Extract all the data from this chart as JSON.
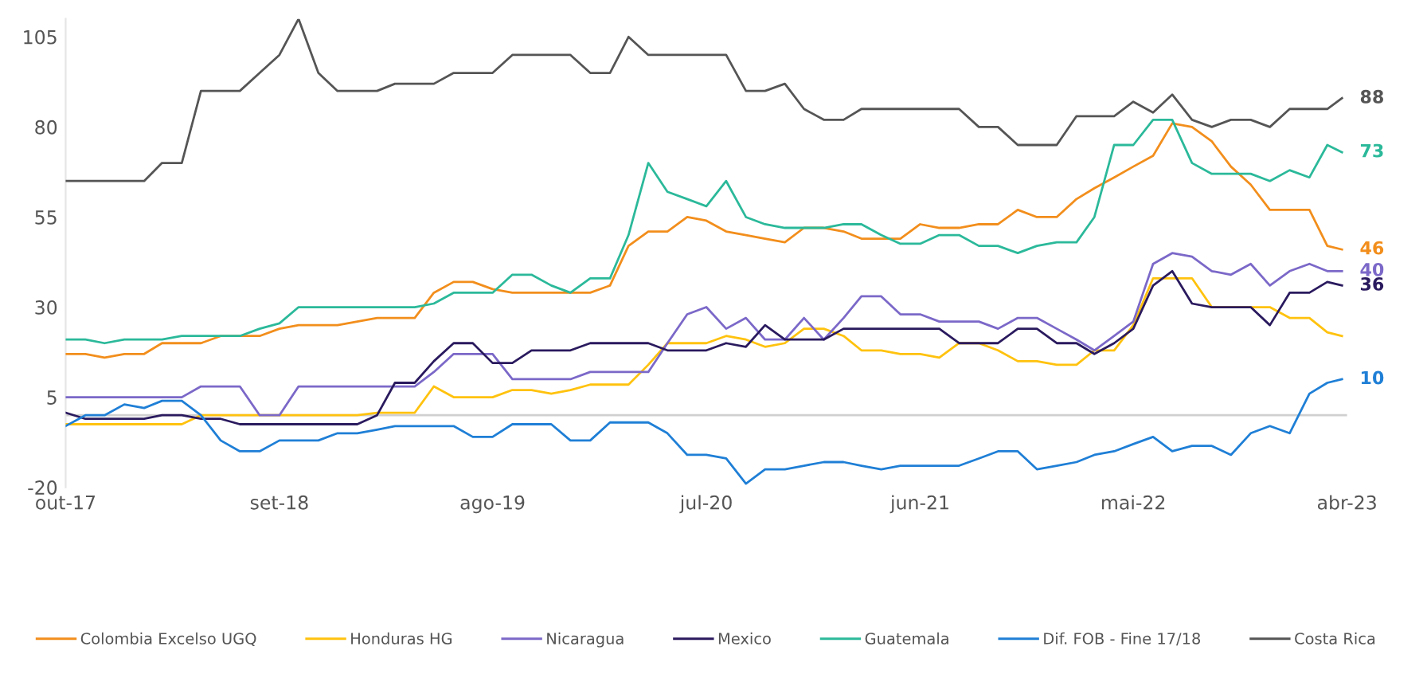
{
  "chart_data": {
    "type": "line",
    "x": [
      "2017-10",
      "2017-11",
      "2017-12",
      "2018-01",
      "2018-02",
      "2018-03",
      "2018-04",
      "2018-05",
      "2018-06",
      "2018-07",
      "2018-08",
      "2018-09",
      "2018-10",
      "2018-11",
      "2018-12",
      "2019-01",
      "2019-02",
      "2019-03",
      "2019-04",
      "2019-05",
      "2019-06",
      "2019-07",
      "2019-08",
      "2019-09",
      "2019-10",
      "2019-11",
      "2019-12",
      "2020-01",
      "2020-02",
      "2020-03",
      "2020-04",
      "2020-05",
      "2020-06",
      "2020-07",
      "2020-08",
      "2020-09",
      "2020-10",
      "2020-11",
      "2020-12",
      "2021-01",
      "2021-02",
      "2021-03",
      "2021-04",
      "2021-05",
      "2021-06",
      "2021-07",
      "2021-08",
      "2021-09",
      "2021-10",
      "2021-11",
      "2021-12",
      "2022-01",
      "2022-02",
      "2022-03",
      "2022-04",
      "2022-05",
      "2022-06",
      "2022-07",
      "2022-08",
      "2022-09",
      "2022-10",
      "2022-11",
      "2022-12",
      "2023-01",
      "2023-02",
      "2023-03",
      "2023-03-24"
    ],
    "series": [
      {
        "name": "Colombia Excelso UGQ",
        "color": "#f28e1c",
        "values": [
          17,
          17,
          16,
          17,
          17,
          20,
          20,
          20,
          22,
          22,
          22,
          24,
          25,
          25,
          25,
          26,
          27,
          27,
          27,
          34,
          37,
          37,
          35,
          34,
          34,
          34,
          34,
          34,
          36,
          47,
          51,
          51,
          55,
          54,
          51,
          50,
          49,
          48,
          52,
          52,
          51,
          49,
          49,
          49,
          53,
          52,
          52,
          53,
          53,
          57,
          55,
          55,
          60,
          63,
          66,
          69,
          72,
          81,
          80,
          76,
          69,
          64,
          57,
          57,
          57,
          47,
          46
        ],
        "value_labels": [
          null,
          null,
          null,
          null,
          null,
          null,
          null,
          null,
          null,
          null,
          null,
          null,
          null,
          null,
          null,
          null,
          null,
          null,
          null,
          null,
          null,
          null,
          null,
          null,
          null,
          null,
          null,
          null,
          null,
          null,
          null,
          null,
          null,
          null,
          null,
          null,
          null,
          null,
          null,
          null,
          null,
          null,
          null,
          null,
          null,
          null,
          null,
          null,
          null,
          null,
          null,
          null,
          null,
          null,
          null,
          null,
          null,
          null,
          null,
          null,
          null,
          null,
          null,
          null,
          null,
          null,
          "46"
        ]
      },
      {
        "name": "Honduras HG",
        "color": "#ffc20e",
        "values": [
          -2.5,
          -2.5,
          -2.5,
          -2.5,
          -2.5,
          -2.5,
          -2.5,
          0,
          0,
          0,
          0,
          0,
          0,
          0,
          0,
          0,
          0.7,
          0.7,
          0.7,
          8,
          5,
          5,
          5,
          7,
          7,
          6,
          7,
          8.5,
          8.5,
          8.5,
          14,
          20,
          20,
          20,
          22,
          21,
          19,
          20,
          24,
          24,
          22,
          18,
          18,
          17,
          17,
          16,
          20,
          20,
          18,
          15,
          15,
          14,
          14,
          18,
          18,
          25,
          38,
          38,
          38,
          30,
          30,
          30,
          30,
          27,
          27,
          23,
          22
        ]
      },
      {
        "name": "Nicaragua",
        "color": "#7b68c8",
        "values": [
          5,
          5,
          5,
          5,
          5,
          5,
          5,
          8,
          8,
          8,
          0,
          0,
          8,
          8,
          8,
          8,
          8,
          8,
          8,
          12,
          17,
          17,
          17,
          10,
          10,
          10,
          10,
          12,
          12,
          12,
          12,
          20,
          28,
          30,
          24,
          27,
          21,
          21,
          27,
          21,
          27,
          33,
          33,
          28,
          28,
          26,
          26,
          26,
          24,
          27,
          27,
          24,
          21,
          18,
          22,
          26,
          42,
          45,
          44,
          40,
          39,
          42,
          36,
          40,
          42,
          40,
          40
        ],
        "value_labels": [
          null,
          null,
          null,
          null,
          null,
          null,
          null,
          null,
          null,
          null,
          null,
          null,
          null,
          null,
          null,
          null,
          null,
          null,
          null,
          null,
          null,
          null,
          null,
          null,
          null,
          null,
          null,
          null,
          null,
          null,
          null,
          null,
          null,
          null,
          null,
          null,
          null,
          null,
          null,
          null,
          null,
          null,
          null,
          null,
          null,
          null,
          null,
          null,
          null,
          null,
          null,
          null,
          null,
          null,
          null,
          null,
          null,
          null,
          null,
          null,
          null,
          null,
          null,
          null,
          null,
          null,
          "40"
        ]
      },
      {
        "name": "Mexico",
        "color": "#2a1a5e",
        "values": [
          0.7,
          -1,
          -1,
          -1,
          -1,
          0,
          0,
          -1,
          -1,
          -2.5,
          -2.5,
          -2.5,
          -2.5,
          -2.5,
          -2.5,
          -2.5,
          0,
          9,
          9,
          15,
          20,
          20,
          14.5,
          14.5,
          18,
          18,
          18,
          20,
          20,
          20,
          20,
          18,
          18,
          18,
          20,
          19,
          25,
          21,
          21,
          21,
          24,
          24,
          24,
          24,
          24,
          24,
          20,
          20,
          20,
          24,
          24,
          20,
          20,
          17,
          20,
          24,
          36,
          40,
          31,
          30,
          30,
          30,
          25,
          34,
          34,
          37,
          36
        ],
        "value_labels": [
          null,
          null,
          null,
          null,
          null,
          null,
          null,
          null,
          null,
          null,
          null,
          null,
          null,
          null,
          null,
          null,
          null,
          null,
          null,
          null,
          null,
          null,
          null,
          null,
          null,
          null,
          null,
          null,
          null,
          null,
          null,
          null,
          null,
          null,
          null,
          null,
          null,
          null,
          null,
          null,
          null,
          null,
          null,
          null,
          null,
          null,
          null,
          null,
          null,
          null,
          null,
          null,
          null,
          null,
          null,
          null,
          null,
          null,
          null,
          null,
          null,
          null,
          null,
          null,
          null,
          null,
          "36"
        ]
      },
      {
        "name": "Guatemala",
        "color": "#2bb99a",
        "values": [
          21,
          21,
          20,
          21,
          21,
          21,
          22,
          22,
          22,
          22,
          24,
          25.5,
          30,
          30,
          30,
          30,
          30,
          30,
          30,
          31,
          34,
          34,
          34,
          39,
          39,
          36,
          34,
          38,
          38,
          50,
          70,
          62,
          60,
          58,
          65,
          55,
          53,
          52,
          52,
          52,
          53,
          53,
          50,
          47.6,
          47.6,
          50,
          50,
          47,
          47,
          45,
          47,
          48,
          48,
          55,
          75,
          75,
          82,
          82,
          70,
          67,
          67,
          67,
          65,
          68,
          66,
          75,
          73
        ],
        "value_labels": [
          null,
          null,
          null,
          null,
          null,
          null,
          null,
          null,
          null,
          null,
          null,
          null,
          null,
          null,
          null,
          null,
          null,
          null,
          null,
          null,
          null,
          null,
          null,
          null,
          null,
          null,
          null,
          null,
          null,
          null,
          null,
          null,
          null,
          null,
          null,
          null,
          null,
          null,
          null,
          null,
          null,
          null,
          null,
          null,
          null,
          null,
          null,
          null,
          null,
          null,
          null,
          null,
          null,
          null,
          null,
          null,
          null,
          null,
          null,
          null,
          null,
          null,
          null,
          null,
          null,
          null,
          "73"
        ]
      },
      {
        "name": "Dif. FOB - Fine 17/18",
        "color": "#1f7fd6",
        "values": [
          -3,
          0,
          0,
          3,
          2,
          4,
          4,
          0,
          -7,
          -10,
          -10,
          -7,
          -7,
          -7,
          -5,
          -5,
          -4,
          -3,
          -3,
          -3,
          -3,
          -6,
          -6,
          -2.5,
          -2.5,
          -2.5,
          -7,
          -7,
          -2,
          -2,
          -2,
          -5,
          -11,
          -11,
          -12,
          -19,
          -15,
          -15,
          -14,
          -13,
          -13,
          -14,
          -15,
          -14,
          -14,
          -14,
          -14,
          -12,
          -10,
          -10,
          -15,
          -14,
          -13,
          -11,
          -10,
          -8,
          -6,
          -10,
          -8.5,
          -8.5,
          -11,
          -5,
          -3,
          -5,
          6,
          9,
          10
        ],
        "value_labels": [
          null,
          null,
          null,
          null,
          null,
          null,
          null,
          null,
          null,
          null,
          null,
          null,
          null,
          null,
          null,
          null,
          null,
          null,
          null,
          null,
          null,
          null,
          null,
          null,
          null,
          null,
          null,
          null,
          null,
          null,
          null,
          null,
          null,
          null,
          null,
          null,
          null,
          null,
          null,
          null,
          null,
          null,
          null,
          null,
          null,
          null,
          null,
          null,
          null,
          null,
          null,
          null,
          null,
          null,
          null,
          null,
          null,
          null,
          null,
          null,
          null,
          null,
          null,
          null,
          null,
          null,
          "10"
        ]
      },
      {
        "name": "Costa Rica",
        "color": "#555555",
        "values": [
          65,
          65,
          65,
          65,
          65,
          70,
          70,
          90,
          90,
          90,
          95,
          100,
          110,
          95,
          90,
          90,
          90,
          92,
          92,
          92,
          95,
          95,
          95,
          100,
          100,
          100,
          100,
          95,
          95,
          105,
          100,
          100,
          100,
          100,
          100,
          90,
          90,
          92,
          85,
          82,
          82,
          85,
          85,
          85,
          85,
          85,
          85,
          80,
          80,
          75,
          75,
          75,
          83,
          83,
          83,
          87,
          84,
          89,
          82,
          80,
          82,
          82,
          80,
          85,
          85,
          85,
          88
        ],
        "value_labels": [
          null,
          null,
          null,
          null,
          null,
          null,
          null,
          null,
          null,
          null,
          null,
          null,
          null,
          null,
          null,
          null,
          null,
          null,
          null,
          null,
          null,
          null,
          null,
          null,
          null,
          null,
          null,
          null,
          null,
          null,
          null,
          null,
          null,
          null,
          null,
          null,
          null,
          null,
          null,
          null,
          null,
          null,
          null,
          null,
          null,
          null,
          null,
          null,
          null,
          null,
          null,
          null,
          null,
          null,
          null,
          null,
          null,
          null,
          null,
          null,
          null,
          null,
          null,
          null,
          null,
          null,
          "88"
        ]
      }
    ],
    "xlim": [
      "2017-10",
      "2023-04"
    ],
    "xticks": [
      {
        "value": "2017-10",
        "label": "out-17"
      },
      {
        "value": "2018-09",
        "label": "set-18"
      },
      {
        "value": "2019-08",
        "label": "ago-19"
      },
      {
        "value": "2020-07",
        "label": "jul-20"
      },
      {
        "value": "2021-06",
        "label": "jun-21"
      },
      {
        "value": "2022-05",
        "label": "mai-22"
      },
      {
        "value": "2023-04",
        "label": "abr-23"
      }
    ],
    "ylim": [
      -20,
      110
    ],
    "yticks": [
      -20,
      5,
      30,
      55,
      80,
      105
    ],
    "ref_lines": [
      {
        "axis": "y",
        "value": 0,
        "color": "#d0d0d0"
      }
    ],
    "grid": false,
    "legend": "bottom",
    "marker": "none",
    "line_style": "solid"
  }
}
